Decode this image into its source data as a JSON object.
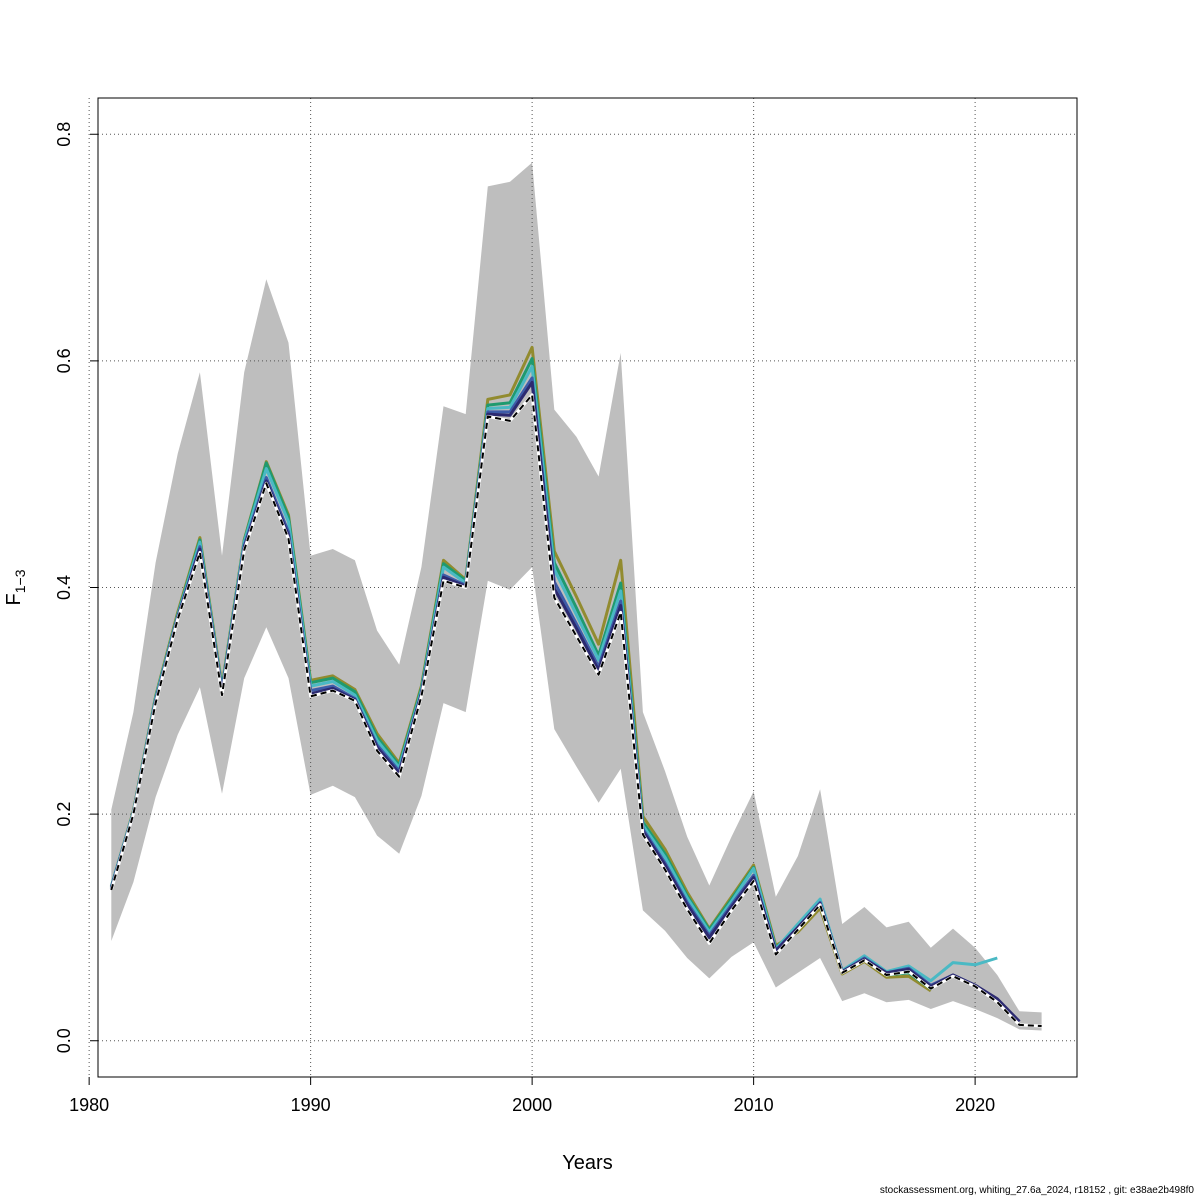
{
  "chart_data": {
    "type": "line",
    "xlabel": "Years",
    "ylabel_main": "F",
    "ylabel_sub": "1−3",
    "xlim": [
      1980,
      2025
    ],
    "ylim": [
      0.0,
      0.8
    ],
    "x_ticks": [
      1980,
      1990,
      2000,
      2010,
      2020
    ],
    "y_ticks": [
      0.0,
      0.2,
      0.4,
      0.6,
      0.8
    ],
    "x_tick_labels": [
      "1980",
      "1990",
      "2000",
      "2010",
      "2020"
    ],
    "y_tick_labels": [
      "0.0",
      "0.2",
      "0.4",
      "0.6",
      "0.8"
    ],
    "grid": true,
    "band_color": "#bebebe",
    "confidence_band": {
      "x": [
        1981,
        1982,
        1983,
        1984,
        1985,
        1986,
        1987,
        1988,
        1989,
        1990,
        1991,
        1992,
        1993,
        1994,
        1995,
        1996,
        1997,
        1998,
        1999,
        2000,
        2001,
        2002,
        2003,
        2004,
        2005,
        2006,
        2007,
        2008,
        2009,
        2010,
        2011,
        2012,
        2013,
        2014,
        2015,
        2016,
        2017,
        2018,
        2019,
        2020,
        2021,
        2022,
        2023
      ],
      "lower": [
        0.088,
        0.14,
        0.215,
        0.27,
        0.312,
        0.218,
        0.32,
        0.365,
        0.32,
        0.217,
        0.225,
        0.215,
        0.181,
        0.165,
        0.216,
        0.298,
        0.29,
        0.406,
        0.398,
        0.418,
        0.275,
        0.242,
        0.21,
        0.24,
        0.115,
        0.097,
        0.073,
        0.055,
        0.074,
        0.087,
        0.047,
        0.06,
        0.073,
        0.035,
        0.042,
        0.034,
        0.036,
        0.028,
        0.035,
        0.028,
        0.02,
        0.01,
        0.009
      ],
      "upper": [
        0.204,
        0.29,
        0.422,
        0.518,
        0.59,
        0.428,
        0.59,
        0.672,
        0.616,
        0.428,
        0.434,
        0.424,
        0.362,
        0.332,
        0.418,
        0.56,
        0.553,
        0.754,
        0.758,
        0.775,
        0.557,
        0.533,
        0.498,
        0.607,
        0.29,
        0.238,
        0.18,
        0.137,
        0.18,
        0.22,
        0.127,
        0.163,
        0.222,
        0.103,
        0.118,
        0.1,
        0.105,
        0.082,
        0.099,
        0.082,
        0.058,
        0.026,
        0.025
      ]
    },
    "series": [
      {
        "color": "#928b2f",
        "dashed": false,
        "x": [
          1981,
          1982,
          1983,
          1984,
          1985,
          1986,
          1987,
          1988,
          1989,
          1990,
          1991,
          1992,
          1993,
          1994,
          1995,
          1996,
          1997,
          1998,
          1999,
          2000,
          2001,
          2002,
          2003,
          2004,
          2005,
          2006,
          2007,
          2008,
          2009,
          2010,
          2011,
          2012,
          2013,
          2014,
          2015,
          2016,
          2017,
          2018
        ],
        "y": [
          0.136,
          0.203,
          0.304,
          0.378,
          0.444,
          0.313,
          0.442,
          0.511,
          0.464,
          0.318,
          0.322,
          0.31,
          0.271,
          0.245,
          0.313,
          0.424,
          0.407,
          0.566,
          0.57,
          0.612,
          0.432,
          0.392,
          0.35,
          0.424,
          0.198,
          0.169,
          0.131,
          0.099,
          0.127,
          0.155,
          0.084,
          0.096,
          0.117,
          0.059,
          0.07,
          0.056,
          0.057,
          0.044
        ]
      },
      {
        "color": "#1f9a6f",
        "dashed": false,
        "x": [
          1981,
          1982,
          1983,
          1984,
          1985,
          1986,
          1987,
          1988,
          1989,
          1990,
          1991,
          1992,
          1993,
          1994,
          1995,
          1996,
          1997,
          1998,
          1999,
          2000,
          2001,
          2002,
          2003,
          2004,
          2005,
          2006,
          2007,
          2008,
          2009,
          2010,
          2011,
          2012,
          2013,
          2014,
          2015,
          2016,
          2017,
          2018,
          2019
        ],
        "y": [
          0.136,
          0.202,
          0.303,
          0.376,
          0.442,
          0.311,
          0.441,
          0.51,
          0.462,
          0.316,
          0.32,
          0.308,
          0.268,
          0.243,
          0.311,
          0.421,
          0.406,
          0.561,
          0.563,
          0.602,
          0.422,
          0.382,
          0.34,
          0.404,
          0.193,
          0.165,
          0.128,
          0.098,
          0.125,
          0.153,
          0.082,
          0.1,
          0.12,
          0.061,
          0.072,
          0.058,
          0.06,
          0.046,
          0.058
        ]
      },
      {
        "color": "#4ab9c4",
        "dashed": false,
        "x": [
          1981,
          1982,
          1983,
          1984,
          1985,
          1986,
          1987,
          1988,
          1989,
          1990,
          1991,
          1992,
          1993,
          1994,
          1995,
          1996,
          1997,
          1998,
          1999,
          2000,
          2001,
          2002,
          2003,
          2004,
          2005,
          2006,
          2007,
          2008,
          2009,
          2010,
          2011,
          2012,
          2013,
          2014,
          2015,
          2016,
          2017,
          2018,
          2019,
          2020,
          2021
        ],
        "y": [
          0.136,
          0.202,
          0.302,
          0.375,
          0.44,
          0.31,
          0.44,
          0.505,
          0.458,
          0.313,
          0.317,
          0.305,
          0.265,
          0.241,
          0.309,
          0.418,
          0.404,
          0.558,
          0.559,
          0.595,
          0.416,
          0.376,
          0.336,
          0.397,
          0.19,
          0.162,
          0.126,
          0.096,
          0.123,
          0.152,
          0.081,
          0.103,
          0.125,
          0.062,
          0.075,
          0.061,
          0.066,
          0.053,
          0.069,
          0.067,
          0.073
        ]
      },
      {
        "color": "#3d5ba8",
        "dashed": false,
        "x": [
          1981,
          1982,
          1983,
          1984,
          1985,
          1986,
          1987,
          1988,
          1989,
          1990,
          1991,
          1992,
          1993,
          1994,
          1995,
          1996,
          1997,
          1998,
          1999,
          2000,
          2001,
          2002,
          2003,
          2004,
          2005,
          2006,
          2007,
          2008,
          2009,
          2010,
          2011,
          2012,
          2013,
          2014,
          2015,
          2016,
          2017,
          2018,
          2019,
          2020,
          2021,
          2022
        ],
        "y": [
          0.135,
          0.201,
          0.3,
          0.374,
          0.436,
          0.308,
          0.437,
          0.497,
          0.449,
          0.309,
          0.313,
          0.302,
          0.261,
          0.238,
          0.307,
          0.411,
          0.402,
          0.555,
          0.555,
          0.585,
          0.405,
          0.368,
          0.33,
          0.388,
          0.187,
          0.157,
          0.122,
          0.093,
          0.12,
          0.146,
          0.08,
          0.1,
          0.122,
          0.061,
          0.073,
          0.06,
          0.064,
          0.049,
          0.058,
          0.049,
          0.036,
          0.017
        ]
      },
      {
        "color": "#2c2a70",
        "dashed": false,
        "x": [
          1981,
          1982,
          1983,
          1984,
          1985,
          1986,
          1987,
          1988,
          1989,
          1990,
          1991,
          1992,
          1993,
          1994,
          1995,
          1996,
          1997,
          1998,
          1999,
          2000,
          2001,
          2002,
          2003,
          2004,
          2005,
          2006,
          2007,
          2008,
          2009,
          2010,
          2011,
          2012,
          2013,
          2014,
          2015,
          2016,
          2017,
          2018,
          2019,
          2020,
          2021,
          2022
        ],
        "y": [
          0.134,
          0.2,
          0.299,
          0.373,
          0.434,
          0.307,
          0.435,
          0.494,
          0.446,
          0.306,
          0.311,
          0.301,
          0.259,
          0.236,
          0.306,
          0.409,
          0.401,
          0.553,
          0.552,
          0.581,
          0.399,
          0.364,
          0.327,
          0.384,
          0.185,
          0.155,
          0.12,
          0.091,
          0.118,
          0.144,
          0.079,
          0.1,
          0.121,
          0.061,
          0.072,
          0.06,
          0.063,
          0.048,
          0.058,
          0.049,
          0.037,
          0.017
        ]
      },
      {
        "color": "#000000",
        "dashed": true,
        "x": [
          1981,
          1982,
          1983,
          1984,
          1985,
          1986,
          1987,
          1988,
          1989,
          1990,
          1991,
          1992,
          1993,
          1994,
          1995,
          1996,
          1997,
          1998,
          1999,
          2000,
          2001,
          2002,
          2003,
          2004,
          2005,
          2006,
          2007,
          2008,
          2009,
          2010,
          2011,
          2012,
          2013,
          2014,
          2015,
          2016,
          2017,
          2018,
          2019,
          2020,
          2021,
          2022,
          2023
        ],
        "y": [
          0.133,
          0.2,
          0.298,
          0.372,
          0.431,
          0.305,
          0.433,
          0.492,
          0.443,
          0.304,
          0.309,
          0.3,
          0.256,
          0.233,
          0.304,
          0.406,
          0.4,
          0.551,
          0.547,
          0.57,
          0.391,
          0.357,
          0.323,
          0.378,
          0.182,
          0.151,
          0.116,
          0.086,
          0.115,
          0.141,
          0.076,
          0.098,
          0.12,
          0.06,
          0.071,
          0.058,
          0.061,
          0.046,
          0.057,
          0.048,
          0.034,
          0.014,
          0.013
        ]
      }
    ]
  },
  "footer": {
    "text": "stockassessment.org, whiting_27.6a_2024, r18152 , git: e38ae2b498f0"
  }
}
